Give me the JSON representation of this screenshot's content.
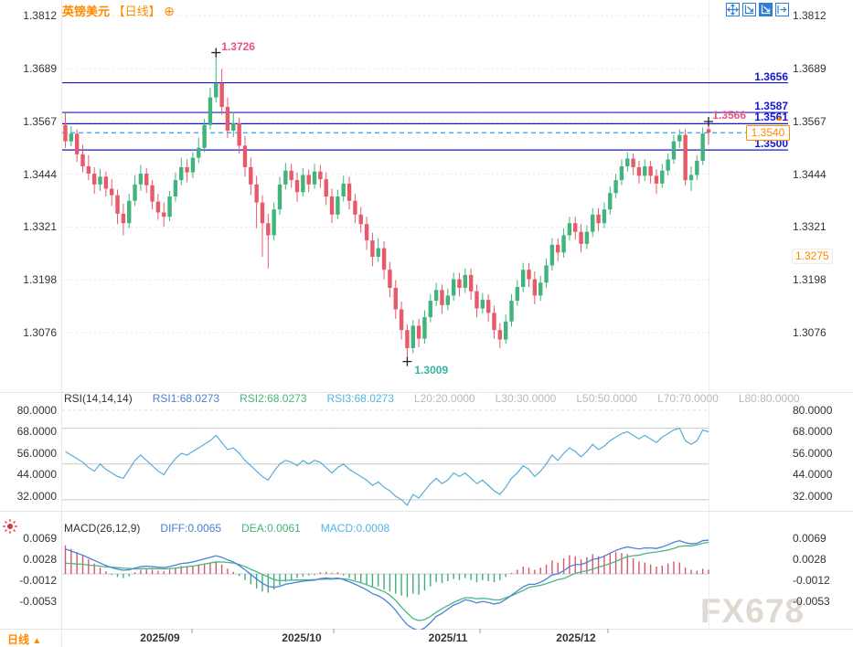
{
  "header": {
    "symbol": "英镑美元",
    "period_tag": "【日线】",
    "add_icon": "⊕"
  },
  "toolbar": {
    "icons": [
      "move",
      "axis-zoom",
      "axis-zoom-filled",
      "pop-out"
    ]
  },
  "footer": {
    "period_label": "日线",
    "arrow": "▲"
  },
  "watermark": {
    "text": "FX678"
  },
  "colors": {
    "up": "#41b47d",
    "down": "#e8596a",
    "level_line": "#1717d0",
    "dashed_line": "#31a2f5",
    "accent_orange": "#ff8a00",
    "rsi_line": "#56aed6",
    "diff": "#4a83d4",
    "dea": "#49b684",
    "hist_pos": "#d9556a",
    "hist_neg": "#3eae7c",
    "high_label": "#e8547a",
    "low_label": "#35b2a0",
    "legend_blue": "#4a7ed2",
    "legend_green": "#43b77c",
    "legend_cyan": "#4fb6e0",
    "muted": "#b9b9b9"
  },
  "chart_data": {
    "type": "candlestick",
    "title": "英镑美元 【日线】",
    "x_tick_labels": [
      "2025/09",
      "2025/10",
      "2025/11",
      "2025/12"
    ],
    "price_axis_ticks": [
      "1.3812",
      "1.3689",
      "1.3567",
      "1.3444",
      "1.3321",
      "1.3198",
      "1.3076"
    ],
    "price_range": [
      1.3812,
      1.3076
    ],
    "levels": [
      {
        "price": 1.3656,
        "label": "1.3656"
      },
      {
        "price": 1.3587,
        "label": "1.3587"
      },
      {
        "price": 1.3561,
        "label": "1.3561"
      },
      {
        "price": 1.35,
        "label": "1.3500"
      }
    ],
    "current_price": 1.354,
    "current_price_label": "1.3540",
    "side_label": "1.3275",
    "high_marker": {
      "index": 26,
      "price": 1.3726,
      "label": "1.3726"
    },
    "low_marker": {
      "index": 59,
      "price": 1.3009,
      "label": "1.3009"
    },
    "last_high_marker": {
      "index": 111,
      "price": 1.3566,
      "label": "1.3566"
    },
    "candles": [
      [
        1.3558,
        1.3585,
        1.3505,
        1.352
      ],
      [
        1.352,
        1.3555,
        1.3508,
        1.3538
      ],
      [
        1.3538,
        1.3548,
        1.3472,
        1.349
      ],
      [
        1.349,
        1.3512,
        1.3448,
        1.3462
      ],
      [
        1.3462,
        1.3488,
        1.343,
        1.3445
      ],
      [
        1.3445,
        1.346,
        1.3398,
        1.342
      ],
      [
        1.342,
        1.3455,
        1.3405,
        1.3438
      ],
      [
        1.3438,
        1.345,
        1.3392,
        1.341
      ],
      [
        1.341,
        1.3432,
        1.337,
        1.3395
      ],
      [
        1.3395,
        1.3408,
        1.3328,
        1.3352
      ],
      [
        1.3352,
        1.3375,
        1.3302,
        1.333
      ],
      [
        1.333,
        1.3398,
        1.3318,
        1.3382
      ],
      [
        1.3382,
        1.3442,
        1.337,
        1.342
      ],
      [
        1.342,
        1.3465,
        1.3405,
        1.3445
      ],
      [
        1.3445,
        1.3458,
        1.34,
        1.3418
      ],
      [
        1.3418,
        1.343,
        1.3362,
        1.338
      ],
      [
        1.338,
        1.3398,
        1.3338,
        1.3355
      ],
      [
        1.3355,
        1.3378,
        1.3322,
        1.3345
      ],
      [
        1.3345,
        1.3405,
        1.3335,
        1.3392
      ],
      [
        1.3392,
        1.3448,
        1.338,
        1.343
      ],
      [
        1.343,
        1.3482,
        1.3418,
        1.346
      ],
      [
        1.346,
        1.3478,
        1.3425,
        1.3448
      ],
      [
        1.3448,
        1.3495,
        1.3435,
        1.3482
      ],
      [
        1.3482,
        1.3528,
        1.347,
        1.3505
      ],
      [
        1.3505,
        1.3572,
        1.3495,
        1.3558
      ],
      [
        1.3558,
        1.3645,
        1.3548,
        1.3622
      ],
      [
        1.3622,
        1.3726,
        1.361,
        1.3655
      ],
      [
        1.3655,
        1.3688,
        1.3582,
        1.36
      ],
      [
        1.36,
        1.3622,
        1.3528,
        1.3545
      ],
      [
        1.3545,
        1.3588,
        1.353,
        1.3562
      ],
      [
        1.3562,
        1.3575,
        1.3492,
        1.351
      ],
      [
        1.351,
        1.3532,
        1.3438,
        1.346
      ],
      [
        1.346,
        1.3482,
        1.3395,
        1.342
      ],
      [
        1.342,
        1.344,
        1.3318,
        1.3378
      ],
      [
        1.3378,
        1.3395,
        1.3252,
        1.333
      ],
      [
        1.333,
        1.3352,
        1.3225,
        1.3302
      ],
      [
        1.3302,
        1.3378,
        1.329,
        1.3362
      ],
      [
        1.3362,
        1.3438,
        1.335,
        1.342
      ],
      [
        1.342,
        1.347,
        1.3408,
        1.3452
      ],
      [
        1.3452,
        1.3468,
        1.3412,
        1.343
      ],
      [
        1.343,
        1.3448,
        1.338,
        1.3402
      ],
      [
        1.3402,
        1.3458,
        1.3392,
        1.3442
      ],
      [
        1.3442,
        1.3455,
        1.3402,
        1.342
      ],
      [
        1.342,
        1.3468,
        1.341,
        1.345
      ],
      [
        1.345,
        1.3465,
        1.3412,
        1.3432
      ],
      [
        1.3432,
        1.3448,
        1.3372,
        1.3392
      ],
      [
        1.3392,
        1.341,
        1.333,
        1.335
      ],
      [
        1.335,
        1.3408,
        1.334,
        1.3392
      ],
      [
        1.3392,
        1.344,
        1.338,
        1.3422
      ],
      [
        1.3422,
        1.3438,
        1.3362,
        1.3382
      ],
      [
        1.3382,
        1.3398,
        1.333,
        1.335
      ],
      [
        1.335,
        1.3368,
        1.3308,
        1.3328
      ],
      [
        1.3328,
        1.3345,
        1.3268,
        1.329
      ],
      [
        1.329,
        1.3308,
        1.323,
        1.3252
      ],
      [
        1.3252,
        1.3295,
        1.324,
        1.3272
      ],
      [
        1.3272,
        1.3288,
        1.32,
        1.3222
      ],
      [
        1.3222,
        1.324,
        1.3158,
        1.318
      ],
      [
        1.318,
        1.3198,
        1.3108,
        1.313
      ],
      [
        1.313,
        1.3148,
        1.306,
        1.3082
      ],
      [
        1.3082,
        1.3095,
        1.3009,
        1.304
      ],
      [
        1.304,
        1.3105,
        1.3028,
        1.3092
      ],
      [
        1.3092,
        1.3108,
        1.3042,
        1.3062
      ],
      [
        1.3062,
        1.3128,
        1.305,
        1.3112
      ],
      [
        1.3112,
        1.3165,
        1.31,
        1.315
      ],
      [
        1.315,
        1.3192,
        1.3138,
        1.3175
      ],
      [
        1.3175,
        1.3188,
        1.312,
        1.314
      ],
      [
        1.314,
        1.3178,
        1.3128,
        1.3162
      ],
      [
        1.3162,
        1.3215,
        1.315,
        1.32
      ],
      [
        1.32,
        1.3215,
        1.316,
        1.318
      ],
      [
        1.318,
        1.3225,
        1.3168,
        1.321
      ],
      [
        1.321,
        1.3225,
        1.3152,
        1.3172
      ],
      [
        1.3172,
        1.3188,
        1.3112,
        1.3132
      ],
      [
        1.3132,
        1.3168,
        1.312,
        1.3152
      ],
      [
        1.3152,
        1.3165,
        1.3102,
        1.3122
      ],
      [
        1.3122,
        1.3138,
        1.3062,
        1.3082
      ],
      [
        1.3082,
        1.3098,
        1.304,
        1.306
      ],
      [
        1.306,
        1.3118,
        1.305,
        1.3102
      ],
      [
        1.3102,
        1.3165,
        1.309,
        1.315
      ],
      [
        1.315,
        1.3198,
        1.3138,
        1.3182
      ],
      [
        1.3182,
        1.3238,
        1.317,
        1.3222
      ],
      [
        1.3222,
        1.3238,
        1.3182,
        1.32
      ],
      [
        1.32,
        1.3218,
        1.3142,
        1.3162
      ],
      [
        1.3162,
        1.3208,
        1.315,
        1.3192
      ],
      [
        1.3192,
        1.3248,
        1.318,
        1.3232
      ],
      [
        1.3232,
        1.3295,
        1.322,
        1.328
      ],
      [
        1.328,
        1.3295,
        1.3242,
        1.3262
      ],
      [
        1.3262,
        1.3318,
        1.325,
        1.3302
      ],
      [
        1.3302,
        1.3345,
        1.329,
        1.333
      ],
      [
        1.333,
        1.3345,
        1.3292,
        1.331
      ],
      [
        1.331,
        1.3328,
        1.3262,
        1.3282
      ],
      [
        1.3282,
        1.3325,
        1.327,
        1.331
      ],
      [
        1.331,
        1.3365,
        1.3298,
        1.335
      ],
      [
        1.335,
        1.3365,
        1.3312,
        1.333
      ],
      [
        1.333,
        1.3378,
        1.3318,
        1.3362
      ],
      [
        1.3362,
        1.3415,
        1.335,
        1.34
      ],
      [
        1.34,
        1.3445,
        1.3388,
        1.343
      ],
      [
        1.343,
        1.3478,
        1.3418,
        1.3462
      ],
      [
        1.3462,
        1.3495,
        1.345,
        1.348
      ],
      [
        1.348,
        1.3492,
        1.3442,
        1.346
      ],
      [
        1.346,
        1.3475,
        1.3422,
        1.344
      ],
      [
        1.344,
        1.3478,
        1.3428,
        1.3462
      ],
      [
        1.3462,
        1.3475,
        1.3422,
        1.344
      ],
      [
        1.344,
        1.3455,
        1.3398,
        1.3422
      ],
      [
        1.3422,
        1.3468,
        1.3412,
        1.3452
      ],
      [
        1.3452,
        1.3492,
        1.344,
        1.3478
      ],
      [
        1.3478,
        1.3535,
        1.3468,
        1.352
      ],
      [
        1.352,
        1.3548,
        1.3505,
        1.3535
      ],
      [
        1.3535,
        1.3548,
        1.3418,
        1.343
      ],
      [
        1.343,
        1.3462,
        1.3405,
        1.3442
      ],
      [
        1.3442,
        1.3488,
        1.343,
        1.3475
      ],
      [
        1.3475,
        1.3552,
        1.3465,
        1.3538
      ],
      [
        1.3548,
        1.3566,
        1.3512,
        1.354
      ]
    ],
    "rsi": {
      "name": "RSI(14,14,14)",
      "legend": [
        {
          "label": "RSI1:68.0273",
          "color": "#4a7ed2"
        },
        {
          "label": "RSI2:68.0273",
          "color": "#43b77c"
        },
        {
          "label": "RSI3:68.0273",
          "color": "#4fb6e0"
        },
        {
          "label": "L20:20.0000",
          "color": "#b9b9b9"
        },
        {
          "label": "L30:30.0000",
          "color": "#b9b9b9"
        },
        {
          "label": "L50:50.0000",
          "color": "#b9b9b9"
        },
        {
          "label": "L70:70.0000",
          "color": "#b9b9b9"
        },
        {
          "label": "L80:80.0000",
          "color": "#b9b9b9"
        }
      ],
      "axis_ticks": [
        "80.0000",
        "68.0000",
        "56.0000",
        "44.0000",
        "32.0000"
      ],
      "grid_levels": [
        80,
        70,
        50,
        30
      ],
      "values": [
        57,
        55,
        53,
        51,
        48,
        46,
        50,
        47,
        45,
        43,
        42,
        47,
        52,
        55,
        52,
        49,
        46,
        44,
        49,
        53,
        56,
        55,
        57,
        59,
        61,
        63,
        66,
        62,
        58,
        59,
        56,
        52,
        49,
        46,
        43,
        41,
        46,
        50,
        52,
        51,
        49,
        52,
        50,
        52,
        51,
        48,
        45,
        48,
        50,
        47,
        45,
        43,
        41,
        38,
        40,
        37,
        35,
        32,
        30,
        27,
        33,
        31,
        35,
        39,
        42,
        39,
        41,
        45,
        43,
        45,
        42,
        39,
        41,
        38,
        35,
        33,
        37,
        42,
        45,
        49,
        47,
        43,
        46,
        50,
        55,
        52,
        56,
        59,
        57,
        54,
        57,
        61,
        58,
        60,
        63,
        65,
        67,
        68,
        66,
        64,
        66,
        64,
        62,
        65,
        67,
        69,
        70,
        63,
        61,
        63,
        69,
        68
      ]
    },
    "macd": {
      "name": "MACD(26,12,9)",
      "legend": [
        {
          "label": "DIFF:0.0065",
          "color": "#4a7ed2"
        },
        {
          "label": "DEA:0.0061",
          "color": "#43b77c"
        },
        {
          "label": "MACD:0.0008",
          "color": "#4fb6e0"
        }
      ],
      "axis_ticks": [
        "0.0069",
        "0.0028",
        "-0.0012",
        "-0.0053"
      ],
      "diff": [
        0.0048,
        0.0044,
        0.004,
        0.0036,
        0.0031,
        0.0026,
        0.0021,
        0.0016,
        0.0012,
        0.0009,
        0.0007,
        0.0008,
        0.0011,
        0.0014,
        0.0015,
        0.0014,
        0.0013,
        0.0012,
        0.0014,
        0.0017,
        0.002,
        0.0021,
        0.0023,
        0.0026,
        0.0029,
        0.0032,
        0.0035,
        0.0032,
        0.0027,
        0.0023,
        0.0016,
        0.0008,
        -0.0001,
        -0.001,
        -0.0018,
        -0.0024,
        -0.0026,
        -0.0024,
        -0.002,
        -0.0018,
        -0.0016,
        -0.0014,
        -0.0013,
        -0.0012,
        -0.0009,
        -0.0008,
        -0.0009,
        -0.0008,
        -0.0011,
        -0.0015,
        -0.002,
        -0.0025,
        -0.0031,
        -0.0038,
        -0.0042,
        -0.0049,
        -0.0058,
        -0.007,
        -0.0085,
        -0.0098,
        -0.0105,
        -0.011,
        -0.0104,
        -0.0094,
        -0.0082,
        -0.0076,
        -0.0068,
        -0.006,
        -0.0056,
        -0.005,
        -0.0052,
        -0.0056,
        -0.0053,
        -0.0055,
        -0.0058,
        -0.0056,
        -0.0049,
        -0.0041,
        -0.0033,
        -0.0025,
        -0.002,
        -0.002,
        -0.0016,
        -0.001,
        -0.0002,
        0.0,
        0.0006,
        0.0014,
        0.0018,
        0.0018,
        0.0022,
        0.0028,
        0.003,
        0.0034,
        0.004,
        0.0045,
        0.0049,
        0.0052,
        0.005,
        0.0048,
        0.005,
        0.005,
        0.0049,
        0.0052,
        0.0056,
        0.0061,
        0.0064,
        0.006,
        0.0058,
        0.0059,
        0.0064,
        0.0065
      ],
      "hist": [
        0.0055,
        0.0048,
        0.0042,
        0.0035,
        0.0028,
        0.002,
        0.0012,
        0.0005,
        -0.0002,
        -0.0006,
        -0.0008,
        -0.0005,
        0.0003,
        0.0008,
        0.001,
        0.0008,
        0.0006,
        0.0005,
        0.0008,
        0.0012,
        0.0015,
        0.0014,
        0.0016,
        0.0018,
        0.002,
        0.0022,
        0.0024,
        0.0018,
        0.001,
        0.0004,
        -0.0004,
        -0.0012,
        -0.002,
        -0.0028,
        -0.0034,
        -0.0036,
        -0.003,
        -0.0022,
        -0.0015,
        -0.0012,
        -0.0008,
        -0.0005,
        -0.0003,
        -0.0002,
        0.0003,
        0.0004,
        0.0002,
        0.0003,
        -0.0003,
        -0.0008,
        -0.0012,
        -0.0016,
        -0.002,
        -0.0026,
        -0.0024,
        -0.003,
        -0.0034,
        -0.0038,
        -0.0042,
        -0.0045,
        -0.0038,
        -0.004,
        -0.0032,
        -0.0024,
        -0.0016,
        -0.0018,
        -0.0014,
        -0.001,
        -0.0012,
        -0.0008,
        -0.0012,
        -0.0016,
        -0.0012,
        -0.0014,
        -0.0016,
        -0.0012,
        -0.0006,
        0.0002,
        0.0008,
        0.0014,
        0.0012,
        0.0008,
        0.0012,
        0.0018,
        0.0026,
        0.0022,
        0.003,
        0.0036,
        0.0034,
        0.0028,
        0.0032,
        0.0038,
        0.0034,
        0.0036,
        0.004,
        0.0042,
        0.004,
        0.0038,
        0.003,
        0.0024,
        0.0022,
        0.0018,
        0.0014,
        0.0016,
        0.002,
        0.0024,
        0.0022,
        0.0012,
        0.0008,
        0.0006,
        0.001,
        0.0008
      ]
    }
  }
}
